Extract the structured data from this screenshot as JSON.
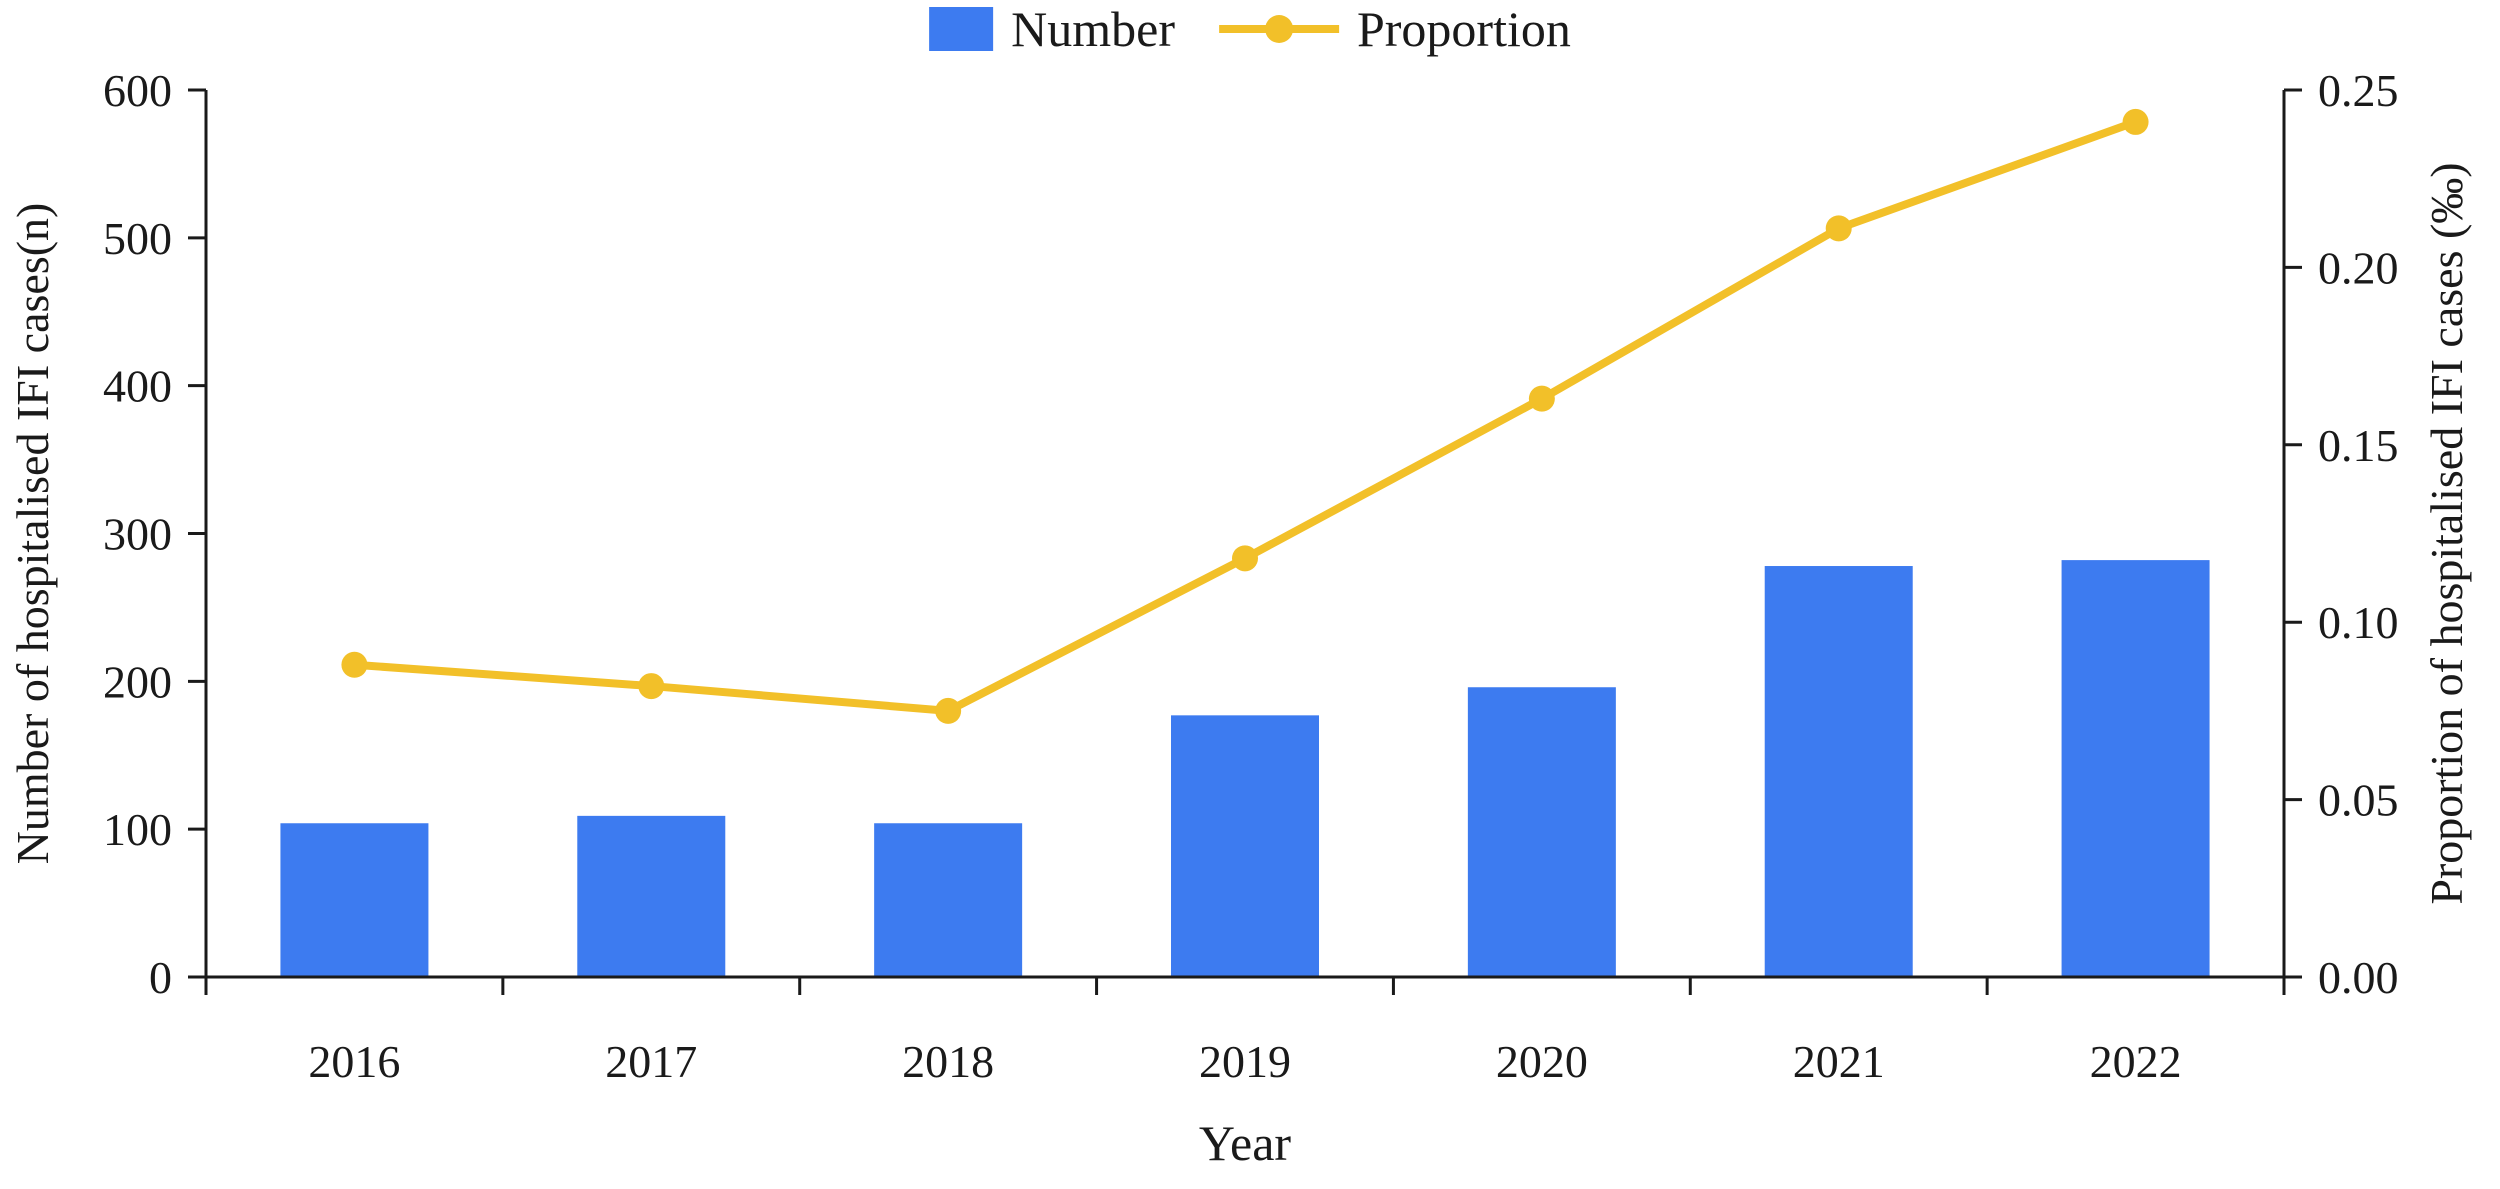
{
  "chart_data": {
    "type": "combo",
    "categories": [
      "2016",
      "2017",
      "2018",
      "2019",
      "2020",
      "2021",
      "2022"
    ],
    "series": [
      {
        "name": "Number",
        "type": "bar",
        "axis": "left",
        "color": "#3D7BF0",
        "values": [
          104,
          109,
          104,
          177,
          196,
          278,
          282
        ]
      },
      {
        "name": "Proportion",
        "type": "line",
        "axis": "right",
        "color": "#F2C029",
        "marker": "circle",
        "values": [
          0.088,
          0.082,
          0.075,
          0.118,
          0.163,
          0.211,
          0.241
        ]
      }
    ],
    "title": "",
    "xlabel": "Year",
    "left_axis": {
      "label": "Number of hospitalised IFI cases(n)",
      "min": 0,
      "max": 600,
      "ticks": [
        0,
        100,
        200,
        300,
        400,
        500,
        600
      ]
    },
    "right_axis": {
      "label": "Proportion of hospitalised  IFI cases (‰)",
      "min": 0,
      "max": 0.25,
      "ticks": [
        "0.00",
        "0.05",
        "0.10",
        "0.15",
        "0.20",
        "0.25"
      ]
    },
    "legend": {
      "position": "top",
      "entries": [
        "Number",
        "Proportion"
      ]
    },
    "grid": false,
    "axis_color": "#1a1a1a",
    "text_color": "#1a1a1a"
  }
}
